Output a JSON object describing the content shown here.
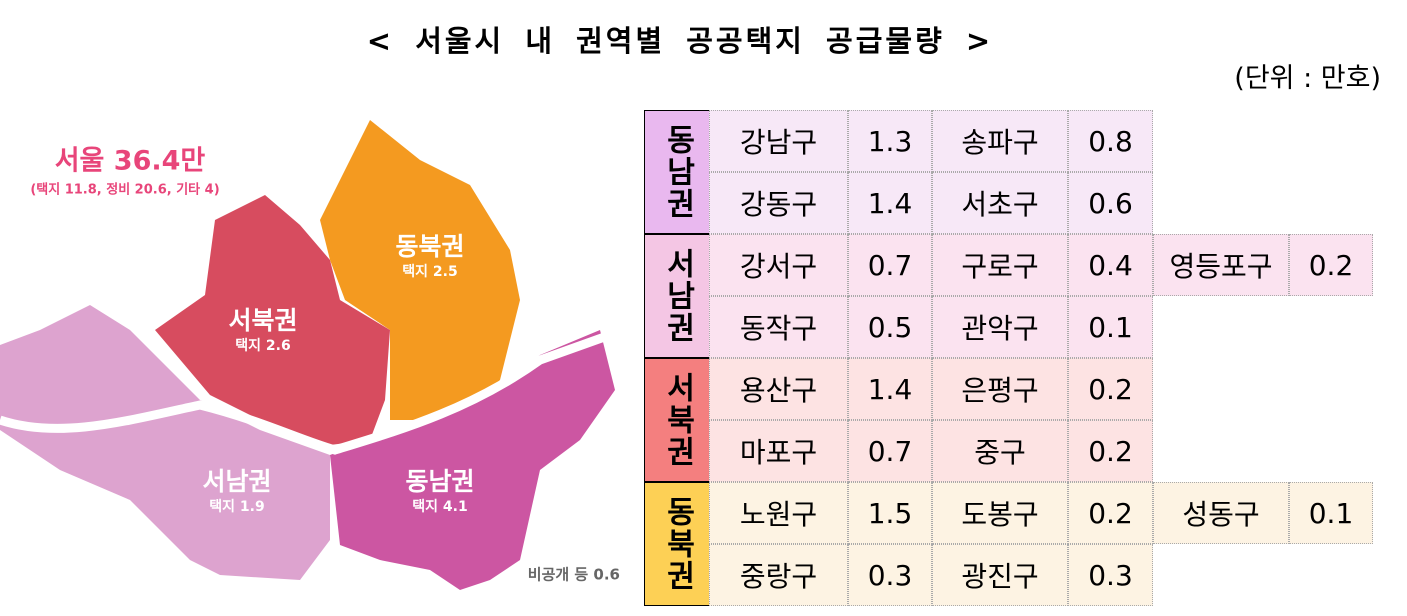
{
  "title": "< 서울시 내 권역별 공공택지 공급물량 >",
  "unit": "(단위 : 만호)",
  "map": {
    "total": "서울 36.4만",
    "breakdown": "(택지 11.8, 정비 20.6, 기타 4)",
    "regions": [
      {
        "name": "동북권",
        "label": "택지 2.5"
      },
      {
        "name": "서북권",
        "label": "택지 2.6"
      },
      {
        "name": "서남권",
        "label": "택지 1.9"
      },
      {
        "name": "동남권",
        "label": "택지 4.1"
      }
    ],
    "note": "비공개 등 0.6"
  },
  "table": {
    "groups": [
      {
        "name": "동남권",
        "rows": [
          [
            "강남구",
            "1.3",
            "송파구",
            "0.8"
          ],
          [
            "강동구",
            "1.4",
            "서초구",
            "0.6"
          ]
        ]
      },
      {
        "name": "서남권",
        "rows": [
          [
            "강서구",
            "0.7",
            "구로구",
            "0.4",
            "영등포구",
            "0.2"
          ],
          [
            "동작구",
            "0.5",
            "관악구",
            "0.1"
          ]
        ]
      },
      {
        "name": "서북권",
        "rows": [
          [
            "용산구",
            "1.4",
            "은평구",
            "0.2"
          ],
          [
            "마포구",
            "0.7",
            "중구",
            "0.2"
          ]
        ]
      },
      {
        "name": "동북권",
        "rows": [
          [
            "노원구",
            "1.5",
            "도봉구",
            "0.2",
            "성동구",
            "0.1"
          ],
          [
            "중랑구",
            "0.3",
            "광진구",
            "0.3"
          ]
        ]
      }
    ]
  }
}
